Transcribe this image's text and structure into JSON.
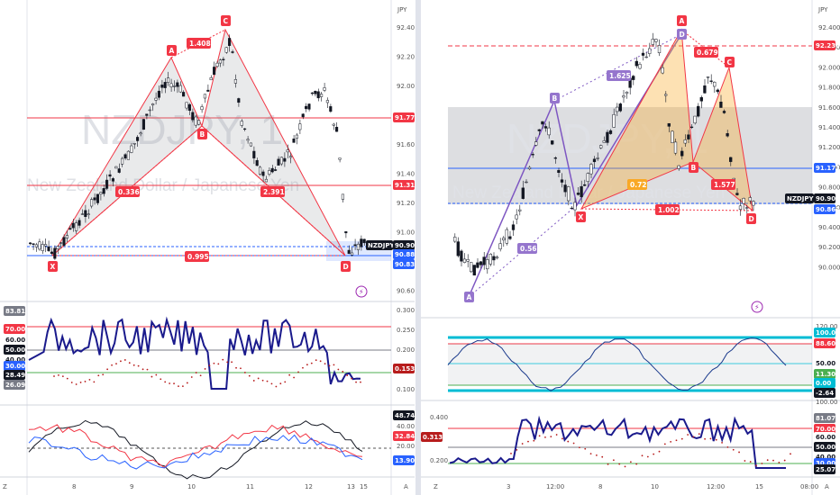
{
  "left_chart": {
    "watermark_symbol": "NZDJPY, 1",
    "watermark_name": "New Zealand Dollar / Japanese Yen",
    "currency": "JPY",
    "price_ticks": [
      "92.400",
      "92.200",
      "92.000",
      "91.800",
      "91.600",
      "91.400",
      "91.200",
      "91.000",
      "90.800",
      "90.600"
    ],
    "price_tags": [
      {
        "text": "91.775",
        "color": "#f23645"
      },
      {
        "text": "91.313",
        "color": "#f23645"
      },
      {
        "text": "NZDJPY",
        "color": "#131722"
      },
      {
        "text": "90.900",
        "color": "#131722"
      },
      {
        "text": "90.887",
        "color": "#2962ff"
      },
      {
        "text": "90.836",
        "color": "#2962ff"
      }
    ],
    "pattern_points": [
      "X",
      "A",
      "B",
      "C",
      "D"
    ],
    "ratio_labels": [
      "1.408",
      "0.336",
      "2.391",
      "0.995"
    ],
    "osc1_ticks": [
      "0.300",
      "0.250",
      "0.200",
      "0.150",
      "0.100"
    ],
    "osc1_tags": [
      {
        "text": "83.81",
        "color": "#787b86"
      },
      {
        "text": "70.00",
        "color": "#f23645"
      },
      {
        "text": "60.00",
        "color": "#ffffff"
      },
      {
        "text": "50.00",
        "color": "#131722"
      },
      {
        "text": "40.00",
        "color": "#ffffff"
      },
      {
        "text": "30.00",
        "color": "#2962ff"
      },
      {
        "text": "28.49",
        "color": "#131722"
      },
      {
        "text": "26.09",
        "color": "#787b86"
      }
    ],
    "osc1_value": "0.153",
    "osc2_ticks": [
      "40.000",
      "20.000"
    ],
    "osc2_tags": [
      {
        "text": "48.742",
        "color": "#131722"
      },
      {
        "text": "32.847",
        "color": "#f23645"
      },
      {
        "text": "13.900",
        "color": "#2962ff"
      }
    ],
    "time_labels": [
      "8",
      "9",
      "10",
      "11",
      "12",
      "13",
      "15"
    ],
    "corner_left": "Z",
    "corner_right": "A"
  },
  "right_chart": {
    "watermark_symbol": "NZDJPY, 1",
    "watermark_name": "New Zealand Dollar / Japanese Yen",
    "currency": "JPY",
    "price_ticks": [
      "92.400",
      "92.200",
      "92.000",
      "91.800",
      "91.600",
      "91.400",
      "91.200",
      "91.000",
      "90.800",
      "90.600",
      "90.400",
      "90.200",
      "90.000"
    ],
    "price_tags": [
      {
        "text": "92.236",
        "color": "#f23645"
      },
      {
        "text": "91.171",
        "color": "#2962ff"
      },
      {
        "text": "NZDJPY",
        "color": "#131722"
      },
      {
        "text": "90.900",
        "color": "#131722"
      },
      {
        "text": "90.867",
        "color": "#2962ff"
      }
    ],
    "pattern_points_outer": [
      "A",
      "B",
      "X",
      "A",
      "C",
      "D"
    ],
    "ratio_labels": [
      "1.625",
      "0.679",
      "0.56",
      "0.72",
      "1.577",
      "1.002"
    ],
    "osc1_ticks": [
      "120.00",
      "100.00"
    ],
    "osc1_tags": [
      {
        "text": "100.00",
        "color": "#00bcd4"
      },
      {
        "text": "88.60",
        "color": "#f23645"
      },
      {
        "text": "50.00",
        "color": "#ffffff"
      },
      {
        "text": "11.30",
        "color": "#4caf50"
      },
      {
        "text": "0.00",
        "color": "#00bcd4"
      },
      {
        "text": "-2.64",
        "color": "#131722"
      }
    ],
    "osc2_ticks": [
      "0.400",
      "0.200"
    ],
    "osc2_value": "0.313",
    "osc2_tags": [
      {
        "text": "81.07",
        "color": "#787b86"
      },
      {
        "text": "70.00",
        "color": "#f23645"
      },
      {
        "text": "60.00",
        "color": "#ffffff"
      },
      {
        "text": "50.00",
        "color": "#131722"
      },
      {
        "text": "40.00",
        "color": "#ffffff"
      },
      {
        "text": "30.00",
        "color": "#2962ff"
      },
      {
        "text": "25.07",
        "color": "#131722"
      }
    ],
    "time_labels": [
      "3",
      "12:00",
      "8",
      "10",
      "12:00",
      "15",
      "08:00"
    ],
    "corner_left": "Z",
    "corner_right": "A"
  }
}
